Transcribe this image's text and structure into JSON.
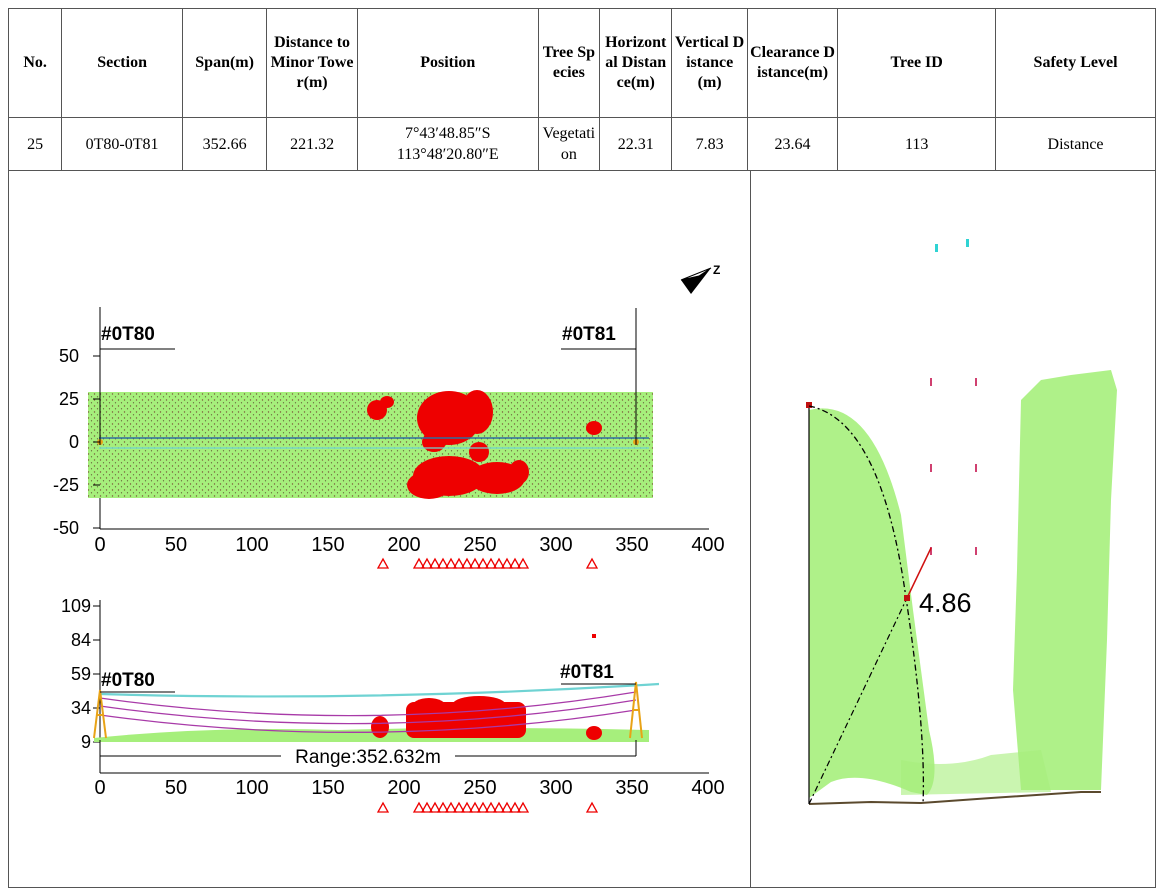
{
  "table": {
    "headers": [
      "No.",
      "Section",
      "Span(m)",
      "Distance to Minor Tower(m)",
      "Position",
      "Tree Species",
      "Horizontal Distance(m)",
      "Vertical Distance(m)",
      "Clearance Distance(m)",
      "Tree ID",
      "Safety Level"
    ],
    "row": {
      "no": "25",
      "section": "0T80-0T81",
      "span": "352.66",
      "distance_minor": "221.32",
      "position_lat": "7°43′48.85″S",
      "position_lon": "113°48′20.80″E",
      "tree_species": "Vegetation",
      "horizontal": "22.31",
      "vertical": "7.83",
      "clearance": "23.64",
      "tree_id": "113",
      "safety_level": "Distance"
    }
  },
  "plan_view": {
    "tower_left": "#0T80",
    "tower_right": "#0T81",
    "compass_label": "Z",
    "y_ticks": [
      "50",
      "25",
      "0",
      "-25",
      "-50"
    ],
    "x_ticks": [
      "0",
      "50",
      "100",
      "150",
      "200",
      "250",
      "300",
      "350",
      "400"
    ]
  },
  "profile_view": {
    "tower_left": "#0T80",
    "tower_right": "#0T81",
    "range_label": "Range:352.632m",
    "y_ticks": [
      "109",
      "84",
      "59",
      "34",
      "9"
    ],
    "x_ticks": [
      "0",
      "50",
      "100",
      "150",
      "200",
      "250",
      "300",
      "350",
      "400"
    ]
  },
  "cross_section": {
    "clearance_label": "4.86"
  },
  "colors": {
    "vegetation": "#a6ef7c",
    "danger": "#ee0000",
    "conductor": "#a83aa8",
    "ground_wire": "#6fd3d3",
    "tower": "#e8a317"
  }
}
